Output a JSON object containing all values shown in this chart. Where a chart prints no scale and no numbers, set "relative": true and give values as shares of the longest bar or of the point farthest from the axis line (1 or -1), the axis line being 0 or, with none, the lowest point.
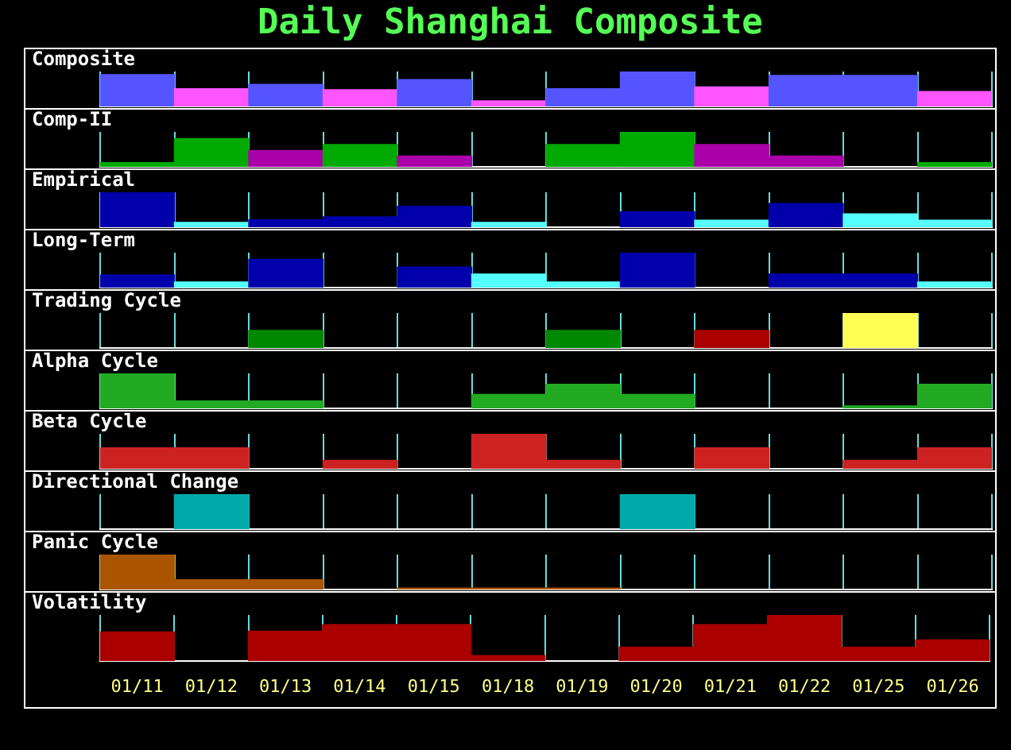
{
  "chart_data": [
    {
      "type": "bar",
      "title": "Daily Shanghai Composite",
      "ylabel": "Composite",
      "relative": true,
      "grid": "x",
      "tick_labels": false,
      "legend": false,
      "categories": [
        null,
        null,
        null,
        null,
        null,
        null,
        null,
        null,
        null,
        null,
        null,
        null
      ],
      "values": [
        0.91,
        0.51,
        0.63,
        0.48,
        0.77,
        0.16,
        0.51,
        1,
        0.56,
        0.89,
        0.89,
        0.43
      ],
      "colors": [
        "#5555ff",
        "#ff55ff",
        "#5555ff",
        "#ff55ff",
        "#5555ff",
        "#ff55ff",
        "#5555ff",
        "#5555ff",
        "#ff55ff",
        "#5555ff",
        "#5555ff",
        "#ff55ff"
      ]
    },
    {
      "type": "bar",
      "ylabel": "Comp-II",
      "relative": true,
      "grid": "x",
      "tick_labels": false,
      "legend": false,
      "categories": [
        null,
        null,
        null,
        null,
        null,
        null,
        null,
        null,
        null,
        null,
        null,
        null
      ],
      "values": [
        0.12,
        0.81,
        0.47,
        0.64,
        0.31,
        null,
        0.64,
        1,
        0.64,
        0.31,
        null,
        0.12
      ],
      "colors": [
        "#00aa00",
        "#00aa00",
        "#aa00aa",
        "#00aa00",
        "#aa00aa",
        "#00aa00",
        "#00aa00",
        "#00aa00",
        "#aa00aa",
        "#aa00aa",
        "#00aa00",
        "#00aa00"
      ]
    },
    {
      "type": "bar",
      "ylabel": "Empirical",
      "relative": true,
      "grid": "x",
      "tick_labels": false,
      "legend": false,
      "categories": [
        null,
        null,
        null,
        null,
        null,
        null,
        null,
        null,
        null,
        null,
        null,
        null
      ],
      "values": [
        1,
        0.14,
        0.21,
        0.3,
        0.6,
        0.14,
        null,
        0.44,
        0.2,
        0.68,
        0.38,
        0.2
      ],
      "colors": [
        "#0000aa",
        "#55ffff",
        "#0000aa",
        "#0000aa",
        "#0000aa",
        "#55ffff",
        "#55ffff",
        "#0000aa",
        "#55ffff",
        "#0000aa",
        "#55ffff",
        "#55ffff"
      ]
    },
    {
      "type": "bar",
      "ylabel": "Long-Term",
      "relative": true,
      "grid": "x",
      "tick_labels": false,
      "legend": false,
      "categories": [
        null,
        null,
        null,
        null,
        null,
        null,
        null,
        null,
        null,
        null,
        null,
        null
      ],
      "values": [
        0.36,
        0.16,
        0.81,
        null,
        0.59,
        0.39,
        0.16,
        1,
        null,
        0.39,
        0.39,
        0.16
      ],
      "colors": [
        "#0000aa",
        "#55ffff",
        "#0000aa",
        "#0000aa",
        "#0000aa",
        "#55ffff",
        "#55ffff",
        "#0000aa",
        "#0000aa",
        "#0000aa",
        "#0000aa",
        "#55ffff"
      ]
    },
    {
      "type": "bar",
      "ylabel": "Trading Cycle",
      "relative": true,
      "grid": "x",
      "tick_labels": false,
      "legend": false,
      "categories": [
        null,
        null,
        null,
        null,
        null,
        null,
        null,
        null,
        null,
        null,
        null,
        null
      ],
      "values": [
        null,
        null,
        0.5,
        null,
        null,
        null,
        0.5,
        null,
        0.5,
        null,
        1,
        null
      ],
      "colors": [
        "#008800",
        "#008800",
        "#008800",
        "#008800",
        "#008800",
        "#008800",
        "#008800",
        "#008800",
        "#aa0000",
        "#008800",
        "#ffff55",
        "#008800"
      ]
    },
    {
      "type": "bar",
      "ylabel": "Alpha Cycle",
      "relative": true,
      "grid": "x",
      "tick_labels": false,
      "legend": false,
      "categories": [
        null,
        null,
        null,
        null,
        null,
        null,
        null,
        null,
        null,
        null,
        null,
        null
      ],
      "values": [
        1,
        0.21,
        0.21,
        null,
        null,
        0.4,
        0.69,
        0.4,
        null,
        null,
        0.07,
        0.69
      ],
      "colors": [
        "#22aa22",
        "#22aa22",
        "#22aa22",
        "#22aa22",
        "#22aa22",
        "#22aa22",
        "#22aa22",
        "#22aa22",
        "#22aa22",
        "#22aa22",
        "#22aa22",
        "#22aa22"
      ]
    },
    {
      "type": "bar",
      "ylabel": "Beta Cycle",
      "relative": true,
      "grid": "x",
      "tick_labels": false,
      "legend": false,
      "categories": [
        null,
        null,
        null,
        null,
        null,
        null,
        null,
        null,
        null,
        null,
        null,
        null
      ],
      "values": [
        0.6,
        0.6,
        null,
        0.24,
        null,
        1,
        0.24,
        null,
        0.6,
        null,
        0.24,
        0.6
      ],
      "colors": [
        "#cc2222",
        "#cc2222",
        "#cc2222",
        "#cc2222",
        "#cc2222",
        "#cc2222",
        "#cc2222",
        "#cc2222",
        "#cc2222",
        "#cc2222",
        "#cc2222",
        "#cc2222"
      ]
    },
    {
      "type": "bar",
      "ylabel": "Directional Change",
      "relative": true,
      "grid": "x",
      "tick_labels": false,
      "legend": false,
      "categories": [
        null,
        null,
        null,
        null,
        null,
        null,
        null,
        null,
        null,
        null,
        null,
        null
      ],
      "values": [
        null,
        1,
        null,
        null,
        null,
        null,
        null,
        1,
        null,
        null,
        null,
        null
      ],
      "colors": [
        "#00aaaa",
        "#00aaaa",
        "#00aaaa",
        "#00aaaa",
        "#00aaaa",
        "#00aaaa",
        "#00aaaa",
        "#00aaaa",
        "#00aaaa",
        "#00aaaa",
        "#00aaaa",
        "#00aaaa"
      ]
    },
    {
      "type": "bar",
      "ylabel": "Panic Cycle",
      "relative": true,
      "grid": "x",
      "tick_labels": false,
      "legend": false,
      "categories": [
        null,
        null,
        null,
        null,
        null,
        null,
        null,
        null,
        null,
        null,
        null,
        null
      ],
      "values": [
        1,
        0.28,
        0.28,
        null,
        0.04,
        0.04,
        0.04,
        null,
        null,
        null,
        null,
        null
      ],
      "colors": [
        "#aa5500",
        "#aa5500",
        "#aa5500",
        "#aa5500",
        "#aa5500",
        "#aa5500",
        "#aa5500",
        "#aa5500",
        "#aa5500",
        "#aa5500",
        "#aa5500",
        "#aa5500"
      ]
    },
    {
      "type": "bar",
      "ylabel": "Volatility",
      "relative": true,
      "grid": "x",
      "tick_labels": "x",
      "legend": false,
      "categories": [
        "01/11",
        "01/12",
        "01/13",
        "01/14",
        "01/15",
        "01/18",
        "01/19",
        "01/20",
        "01/21",
        "01/22",
        "01/25",
        "01/26"
      ],
      "values": [
        0.63,
        null,
        0.65,
        0.79,
        0.79,
        0.12,
        null,
        0.3,
        0.79,
        1,
        0.3,
        0.46
      ],
      "colors": [
        "#aa0000",
        "#aa0000",
        "#aa0000",
        "#aa0000",
        "#aa0000",
        "#aa0000",
        "#aa0000",
        "#aa0000",
        "#aa0000",
        "#aa0000",
        "#aa0000",
        "#aa0000"
      ]
    }
  ]
}
